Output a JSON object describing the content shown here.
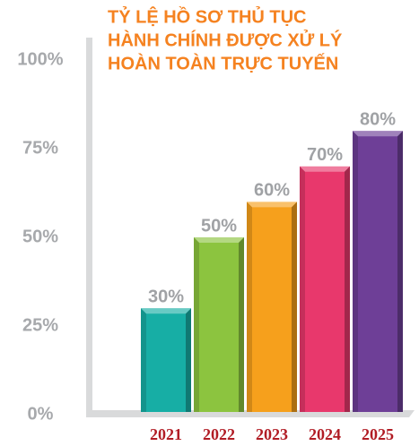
{
  "chart_data": {
    "type": "bar",
    "title": [
      "TỶ LỆ HỒ SƠ THỦ TỤC",
      "HÀNH CHÍNH ĐƯỢC XỬ LÝ",
      "HOÀN TOÀN TRỰC TUYẾN"
    ],
    "categories": [
      "2021",
      "2022",
      "2023",
      "2024",
      "2025"
    ],
    "values": [
      30,
      50,
      60,
      70,
      80
    ],
    "value_labels": [
      "30%",
      "50%",
      "60%",
      "70%",
      "80%"
    ],
    "colors": [
      "#17aea5",
      "#8cc43f",
      "#f6a01c",
      "#e8386c",
      "#6e3f97"
    ],
    "ylim": [
      0,
      100
    ],
    "yticks": [
      {
        "value": 0,
        "label": "0%"
      },
      {
        "value": 25,
        "label": "25%"
      },
      {
        "value": 50,
        "label": "50%"
      },
      {
        "value": 75,
        "label": "75%"
      },
      {
        "value": 100,
        "label": "100%"
      }
    ]
  }
}
